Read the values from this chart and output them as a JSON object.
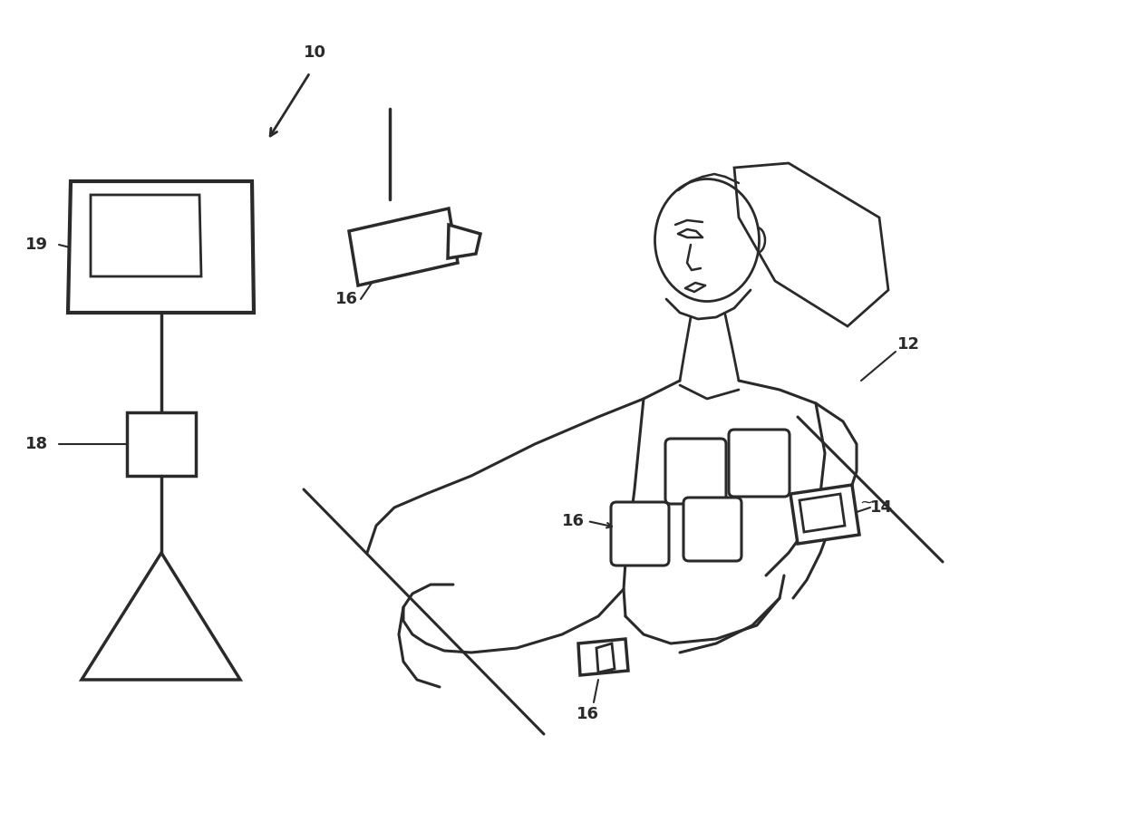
{
  "background_color": "#ffffff",
  "line_color": "#2a2a2a",
  "line_width": 2.2,
  "label_fontsize": 13,
  "label_fontweight": "bold"
}
